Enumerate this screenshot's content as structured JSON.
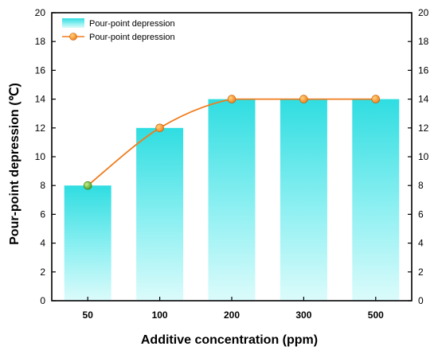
{
  "chart_data": {
    "type": "bar",
    "categories": [
      "50",
      "100",
      "200",
      "300",
      "500"
    ],
    "series": [
      {
        "name": "Pour-point depression",
        "kind": "bar",
        "values": [
          8,
          12,
          14,
          14,
          14
        ],
        "color": "#4fe3e6"
      },
      {
        "name": "Pour-point depression",
        "kind": "line",
        "values": [
          8,
          12,
          14,
          14,
          14
        ],
        "color": "#f07c1c",
        "marker_color": "#ff9a1a",
        "first_marker_color": "#5cb82e"
      }
    ],
    "xlabel": "Additive concentration (ppm)",
    "ylabel": "Pour-point depression (℃)",
    "ylim": [
      0,
      20
    ],
    "yticks": [
      0,
      2,
      4,
      6,
      8,
      10,
      12,
      14,
      16,
      18,
      20
    ],
    "right_axis": true,
    "grid": false,
    "legend_position": "top-left"
  }
}
